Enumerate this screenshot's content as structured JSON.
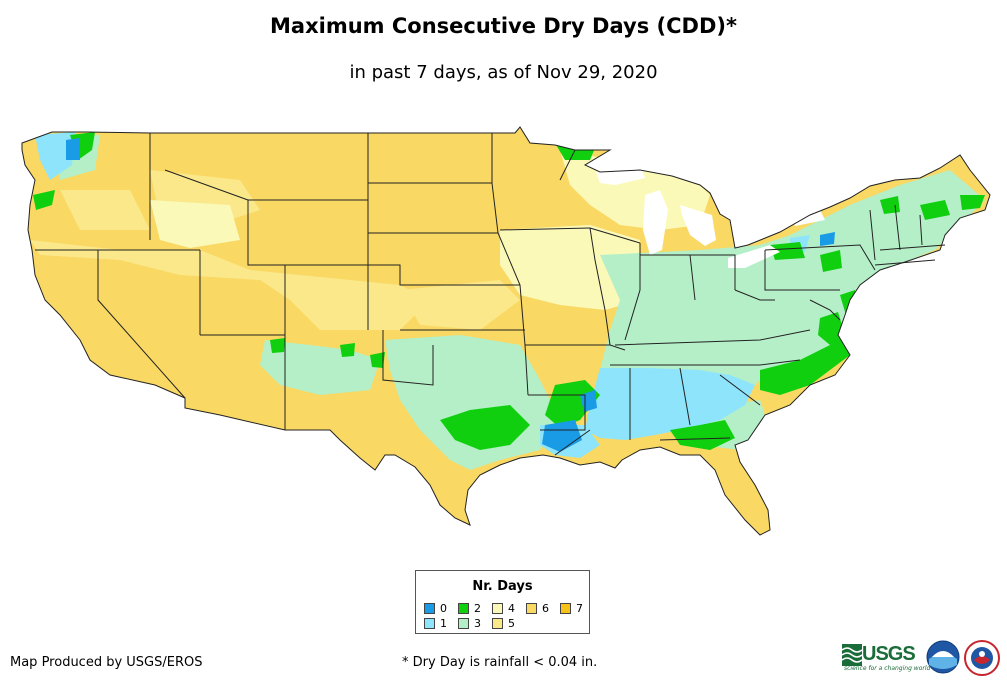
{
  "title": "Maximum Consecutive Dry Days (CDD)*",
  "subtitle": "in past 7 days, as of Nov 29, 2020",
  "legend": {
    "title": "Nr. Days",
    "items": [
      {
        "label": "0",
        "color": "#1a9be6"
      },
      {
        "label": "1",
        "color": "#8ee5fb"
      },
      {
        "label": "2",
        "color": "#0fcf0f"
      },
      {
        "label": "3",
        "color": "#b5efc8"
      },
      {
        "label": "4",
        "color": "#fbf9b8"
      },
      {
        "label": "5",
        "color": "#fbe88a"
      },
      {
        "label": "6",
        "color": "#f9d863"
      },
      {
        "label": "7",
        "color": "#f6c21a"
      }
    ]
  },
  "credit": "Map Produced by USGS/EROS",
  "footnote": "* Dry Day is rainfall < 0.04 in.",
  "logos": {
    "usgs": "USGS",
    "usgs_tagline": "science for a changing world",
    "others": [
      "noaa-logo",
      "national-weather-service-logo"
    ]
  },
  "map_colors": {
    "background": "#f9d863",
    "state_border": "#222222"
  }
}
